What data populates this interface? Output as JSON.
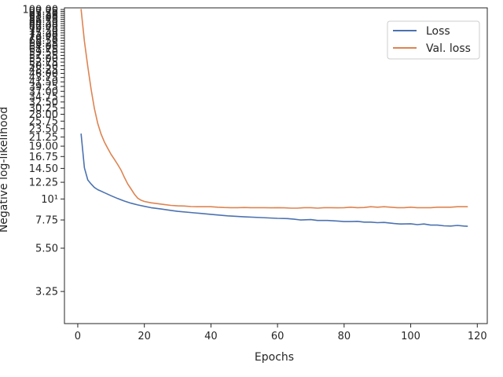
{
  "chart_data": {
    "type": "line",
    "title": "",
    "xlabel": "Epochs",
    "ylabel": "Negative log-likelihood",
    "yscale": "log",
    "xlim": [
      -4,
      123
    ],
    "ylim": [
      2.2,
      102
    ],
    "xticks": [
      0,
      20,
      40,
      60,
      80,
      100,
      120
    ],
    "xtick_labels": [
      "0",
      "20",
      "40",
      "60",
      "80",
      "100",
      "120"
    ],
    "yticks": [
      3.25,
      5.5,
      7.75,
      10,
      12.25,
      14.5,
      16.75,
      19.0,
      21.25,
      23.5,
      25.75,
      28.0,
      30.25,
      32.5,
      34.75,
      37.0,
      39.25,
      41.5,
      43.75,
      46.0,
      48.25,
      50.5,
      52.75,
      55.0,
      57.25,
      59.5,
      61.75,
      64.0,
      66.25,
      68.5,
      70.75,
      73.0,
      75.25,
      77.5,
      79.75,
      82.0,
      84.25,
      86.5,
      88.75,
      91.0,
      93.25,
      95.5,
      97.75,
      100.0
    ],
    "ytick_labels": [
      "3.25",
      "5.50",
      "7.75",
      "10¹",
      "12.25",
      "14.50",
      "16.75",
      "19.00",
      "21.25",
      "23.50",
      "25.75",
      "28.00",
      "30.25",
      "32.50",
      "34.75",
      "37.00",
      "39.25",
      "41.50",
      "43.75",
      "46.00",
      "48.25",
      "50.50",
      "52.75",
      "55.00",
      "57.25",
      "59.50",
      "61.75",
      "64.00",
      "66.25",
      "68.50",
      "70.75",
      "73.00",
      "75.25",
      "77.50",
      "79.75",
      "82.00",
      "84.25",
      "86.50",
      "88.75",
      "91.00",
      "93.25",
      "95.50",
      "97.75",
      "100.00"
    ],
    "grid": false,
    "legend_position": "top-right",
    "series": [
      {
        "name": "Loss",
        "color": "#4c72b0",
        "x": [
          1,
          2,
          3,
          4,
          5,
          6,
          8,
          10,
          12,
          14,
          16,
          18,
          20,
          22,
          25,
          28,
          30,
          35,
          40,
          45,
          50,
          55,
          60,
          63,
          65,
          67,
          70,
          72,
          75,
          78,
          80,
          82,
          84,
          86,
          88,
          90,
          92,
          95,
          97,
          100,
          102,
          104,
          106,
          108,
          110,
          112,
          114,
          116,
          117
        ],
        "y": [
          22.0,
          14.6,
          12.6,
          12.0,
          11.5,
          11.2,
          10.8,
          10.4,
          10.05,
          9.75,
          9.5,
          9.3,
          9.15,
          9.0,
          8.85,
          8.7,
          8.6,
          8.45,
          8.3,
          8.15,
          8.05,
          7.98,
          7.9,
          7.88,
          7.82,
          7.75,
          7.78,
          7.7,
          7.7,
          7.65,
          7.6,
          7.6,
          7.62,
          7.55,
          7.55,
          7.5,
          7.52,
          7.42,
          7.38,
          7.4,
          7.32,
          7.38,
          7.28,
          7.28,
          7.22,
          7.2,
          7.25,
          7.2,
          7.18
        ]
      },
      {
        "name": "Val. loss",
        "color": "#dd8452",
        "x": [
          1,
          2,
          3,
          4,
          5,
          6,
          7,
          8,
          9,
          10,
          11,
          12,
          13,
          14,
          15,
          16,
          17,
          18,
          19,
          20,
          22,
          24,
          26,
          28,
          30,
          32,
          34,
          36,
          38,
          40,
          42,
          44,
          46,
          48,
          50,
          52,
          54,
          56,
          58,
          60,
          62,
          64,
          66,
          68,
          70,
          72,
          74,
          76,
          78,
          80,
          82,
          84,
          86,
          88,
          90,
          92,
          94,
          96,
          98,
          100,
          102,
          104,
          106,
          108,
          110,
          112,
          114,
          116,
          117
        ],
        "y": [
          100,
          68,
          50,
          38,
          30,
          25,
          22,
          20,
          18.5,
          17.2,
          16.2,
          15.2,
          14.2,
          13.0,
          12.0,
          11.3,
          10.6,
          10.1,
          9.85,
          9.7,
          9.55,
          9.45,
          9.35,
          9.25,
          9.2,
          9.18,
          9.12,
          9.1,
          9.1,
          9.1,
          9.05,
          9.02,
          9.0,
          9.0,
          9.02,
          9.0,
          9.0,
          9.0,
          8.98,
          9.0,
          8.98,
          8.95,
          8.95,
          9.0,
          9.0,
          8.95,
          9.0,
          9.0,
          8.98,
          9.0,
          9.05,
          9.0,
          9.02,
          9.1,
          9.05,
          9.1,
          9.05,
          9.0,
          9.0,
          9.05,
          9.0,
          9.0,
          9.0,
          9.05,
          9.05,
          9.05,
          9.1,
          9.1,
          9.1
        ]
      }
    ]
  }
}
